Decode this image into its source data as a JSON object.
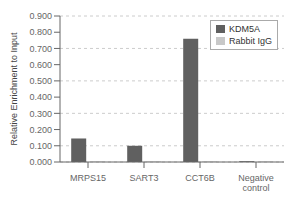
{
  "chart_data": {
    "type": "bar",
    "categories": [
      "MRPS15",
      "SART3",
      "CCT6B",
      "Negative\ncontrol"
    ],
    "series": [
      {
        "name": "KDM5A",
        "color": "#606060",
        "values": [
          0.145,
          0.1,
          0.76,
          0.005
        ]
      },
      {
        "name": "Rabbit IgG",
        "color": "#c8c8c8",
        "values": [
          0.003,
          0.003,
          0.003,
          0.003
        ]
      }
    ],
    "ylabel": "Relative Enrichment to Input",
    "ylim": [
      0.0,
      0.9
    ],
    "yticks": [
      {
        "value": 0.0,
        "label": "0.000"
      },
      {
        "value": 0.1,
        "label": "0.100"
      },
      {
        "value": 0.2,
        "label": "0.200"
      },
      {
        "value": 0.3,
        "label": "0.300"
      },
      {
        "value": 0.4,
        "label": "0.400"
      },
      {
        "value": 0.5,
        "label": "0.500"
      },
      {
        "value": 0.6,
        "label": "0.600"
      },
      {
        "value": 0.7,
        "label": "0.700"
      },
      {
        "value": 0.8,
        "label": "0.800"
      },
      {
        "value": 0.9,
        "label": "0.900"
      }
    ],
    "grid": true,
    "legend": "upper right"
  }
}
